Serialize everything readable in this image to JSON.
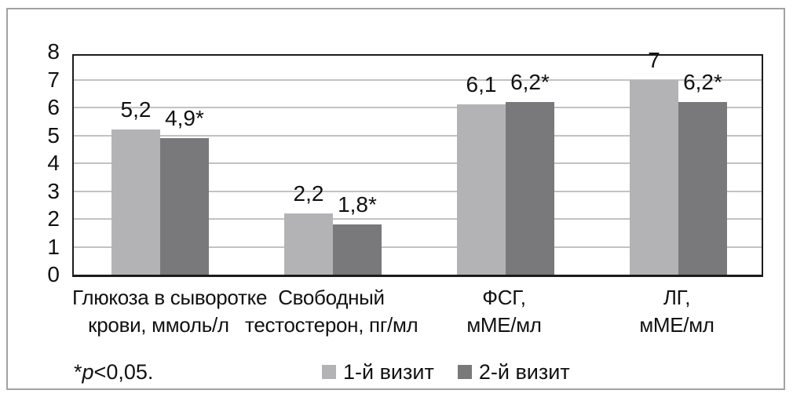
{
  "figure": {
    "footnote": {
      "star": "*",
      "p_symbol": "p",
      "rest": "<0,05."
    }
  },
  "chart_data": {
    "type": "bar",
    "title": "",
    "xlabel": "",
    "ylabel": "",
    "ylim": [
      0,
      8
    ],
    "yticks": [
      0,
      1,
      2,
      3,
      4,
      5,
      6,
      7,
      8
    ],
    "grid": true,
    "legend_position": "bottom",
    "footnote": "*p<0,05.",
    "categories": [
      [
        "Глюкоза в сыворотке",
        "крови, ммоль/л"
      ],
      [
        "Свободный",
        "тестостерон, пг/мл"
      ],
      [
        "ФСГ,",
        "мМЕ/мл"
      ],
      [
        "ЛГ,",
        "мМЕ/мл"
      ]
    ],
    "series": [
      {
        "name": "1-й визит",
        "color": "#b3b3b5",
        "values": [
          5.2,
          2.2,
          6.1,
          7.0
        ],
        "labels": [
          "5,2",
          "2,2",
          "6,1",
          "7"
        ]
      },
      {
        "name": "2-й визит",
        "color": "#79797c",
        "values": [
          4.9,
          1.8,
          6.2,
          6.2
        ],
        "labels": [
          "4,9*",
          "1,8*",
          "6,2*",
          "6,2*"
        ]
      }
    ],
    "colors": {
      "frame": "#1c1c1c",
      "gridline": "#c2c2c4",
      "outer_border": "#a2a2a5",
      "text": "#111111"
    }
  }
}
